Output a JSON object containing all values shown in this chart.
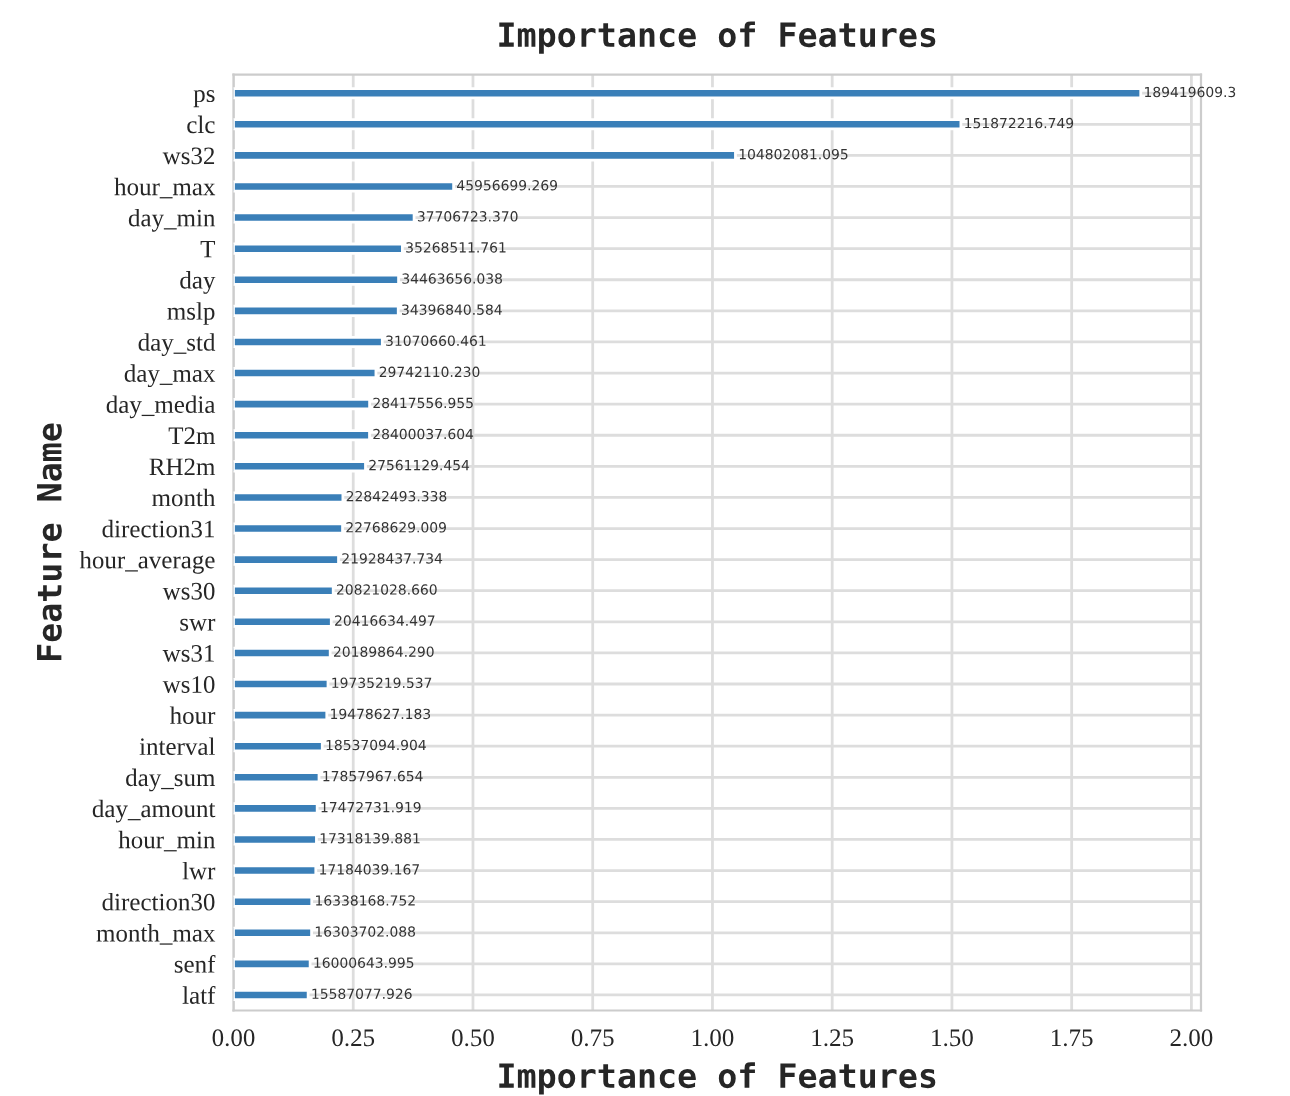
{
  "chart_data": {
    "type": "bar",
    "orientation": "horizontal",
    "title": "Importance of Features",
    "xlabel": "Importance of Features",
    "ylabel": "Feature Name",
    "categories": [
      "ps",
      "clc",
      "ws32",
      "hour_max",
      "day_min",
      "T",
      "day",
      "mslp",
      "day_std",
      "day_max",
      "day_media",
      "T2m",
      "RH2m",
      "month",
      "direction31",
      "hour_average",
      "ws30",
      "swr",
      "ws31",
      "ws10",
      "hour",
      "interval",
      "day_sum",
      "day_amount",
      "hour_min",
      "lwr",
      "direction30",
      "month_max",
      "senf",
      "latf"
    ],
    "values": [
      1.894196093,
      1.51872216749,
      1.04802081095,
      0.45956699269,
      0.3770672337,
      0.35268511761,
      0.34463656038,
      0.34396840584,
      0.31070660461,
      0.2974211023,
      0.28417556955,
      0.28400037604,
      0.27561129454,
      0.22842493338,
      0.22768629009,
      0.21928437734,
      0.2082102866,
      0.20416634497,
      0.2018986429,
      0.19735219537,
      0.19478627183,
      0.18537094904,
      0.17857967654,
      0.17472731919,
      0.17318139881,
      0.17184039167,
      0.16338168752,
      0.16303702088,
      0.16000643995,
      0.15587077926
    ],
    "annotations": [
      {
        "text": "189419609.3",
        "x": 1.894196093,
        "y": "ps"
      },
      {
        "text": "151872216.749",
        "x": 1.51872216749,
        "y": "clc"
      },
      {
        "text": "104802081.095",
        "x": 1.04802081095,
        "y": "ws32"
      },
      {
        "text": "45956699.269",
        "x": 0.45956699269,
        "y": "hour_max"
      },
      {
        "text": "37706723.370",
        "x": 0.3770672337,
        "y": "day_min"
      },
      {
        "text": "35268511.761",
        "x": 0.35268511761,
        "y": "T"
      },
      {
        "text": "34463656.038",
        "x": 0.34463656038,
        "y": "day"
      },
      {
        "text": "34396840.584",
        "x": 0.34396840584,
        "y": "mslp"
      },
      {
        "text": "31070660.461",
        "x": 0.31070660461,
        "y": "day_std"
      },
      {
        "text": "29742110.230",
        "x": 0.2974211023,
        "y": "day_max"
      },
      {
        "text": "28417556.955",
        "x": 0.28417556955,
        "y": "day_media"
      },
      {
        "text": "28400037.604",
        "x": 0.28400037604,
        "y": "T2m"
      },
      {
        "text": "27561129.454",
        "x": 0.27561129454,
        "y": "RH2m"
      },
      {
        "text": "22842493.338",
        "x": 0.22842493338,
        "y": "month"
      },
      {
        "text": "22768629.009",
        "x": 0.22768629009,
        "y": "direction31"
      },
      {
        "text": "21928437.734",
        "x": 0.21928437734,
        "y": "hour_average"
      },
      {
        "text": "20821028.660",
        "x": 0.2082102866,
        "y": "ws30"
      },
      {
        "text": "20416634.497",
        "x": 0.20416634497,
        "y": "swr"
      },
      {
        "text": "20189864.290",
        "x": 0.2018986429,
        "y": "ws31"
      },
      {
        "text": "19735219.537",
        "x": 0.19735219537,
        "y": "ws10"
      },
      {
        "text": "19478627.183",
        "x": 0.19478627183,
        "y": "hour"
      },
      {
        "text": "18537094.904",
        "x": 0.18537094904,
        "y": "interval"
      },
      {
        "text": "17857967.654",
        "x": 0.17857967654,
        "y": "day_sum"
      },
      {
        "text": "17472731.919",
        "x": 0.17472731919,
        "y": "day_amount"
      },
      {
        "text": "17318139.881",
        "x": 0.17318139881,
        "y": "hour_min"
      },
      {
        "text": "17184039.167",
        "x": 0.17184039167,
        "y": "lwr"
      },
      {
        "text": "16338168.752",
        "x": 0.16338168752,
        "y": "direction30"
      },
      {
        "text": "16303702.088",
        "x": 0.16303702088,
        "y": "month_max"
      },
      {
        "text": "16000643.995",
        "x": 0.16000643995,
        "y": "senf"
      },
      {
        "text": "15587077.926",
        "x": 0.15587077926,
        "y": "latf"
      }
    ],
    "color": "#3a7fb8",
    "xlim": [
      0,
      2.02
    ],
    "xticks": [
      {
        "value": 0,
        "label": "0.00"
      },
      {
        "value": 0.25,
        "label": "0.25"
      },
      {
        "value": 0.5,
        "label": "0.50"
      },
      {
        "value": 0.75,
        "label": "0.75"
      },
      {
        "value": 1,
        "label": "1.00"
      },
      {
        "value": 1.25,
        "label": "1.25"
      },
      {
        "value": 1.5,
        "label": "1.50"
      },
      {
        "value": 1.75,
        "label": "1.75"
      },
      {
        "value": 2,
        "label": "2.00"
      }
    ],
    "grid": true
  }
}
